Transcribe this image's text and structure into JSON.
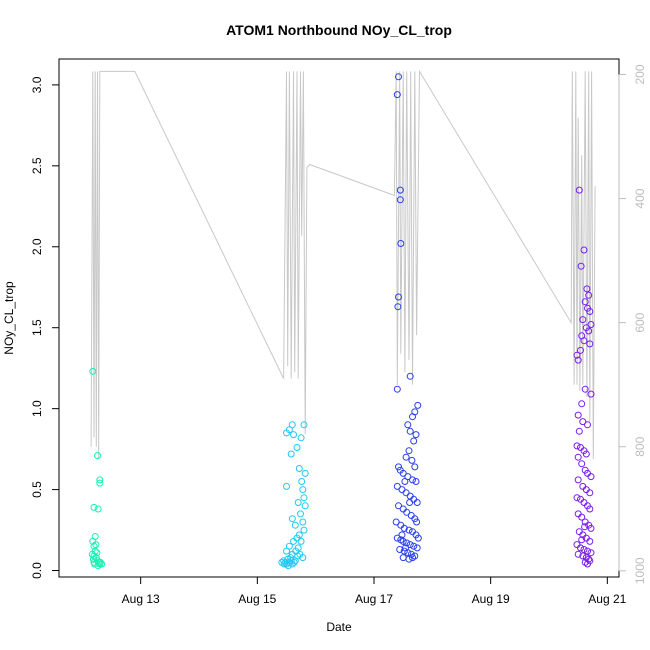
{
  "chart_data": {
    "type": "scatter",
    "title": "ATOM1 Northbound NOy_CL_trop",
    "xlabel": "Date",
    "ylabel": "NOy_CL_trop",
    "x_tick_labels": [
      "Aug 13",
      "Aug 15",
      "Aug 17",
      "Aug 19",
      "Aug 21"
    ],
    "x_tick_days": [
      13,
      15,
      17,
      19,
      21
    ],
    "x_range_days": [
      11.6,
      21.2
    ],
    "ylim": [
      -0.04,
      3.16
    ],
    "y_ticks": [
      0.0,
      0.5,
      1.0,
      1.5,
      2.0,
      2.5,
      3.0
    ],
    "y_tick_labels": [
      "0.0",
      "0.5",
      "1.0",
      "1.5",
      "2.0",
      "2.5",
      "3.0"
    ],
    "right_axis": {
      "label_color": "#bdbdbd",
      "ticks": [
        200,
        400,
        600,
        800,
        1000
      ],
      "tick_labels": [
        "200",
        "400",
        "600",
        "800",
        "1000"
      ],
      "range_reversed": [
        1010,
        175
      ]
    },
    "grid": false,
    "legend": "none",
    "colors": {
      "flight1": "#19f0b4",
      "flight2": "#21c8f5",
      "flight3": "#2a3ff0",
      "flight4": "#7a1ef0",
      "pressure_line": "#c8c8c8"
    },
    "series": [
      {
        "color": "#19f0b4",
        "points": [
          [
            12.18,
            1.23
          ],
          [
            12.2,
            0.39
          ],
          [
            12.27,
            0.38
          ],
          [
            12.3,
            0.56
          ],
          [
            12.3,
            0.54
          ],
          [
            12.26,
            0.71
          ],
          [
            12.18,
            0.18
          ],
          [
            12.22,
            0.21
          ],
          [
            12.2,
            0.15
          ],
          [
            12.22,
            0.12
          ],
          [
            12.25,
            0.11
          ],
          [
            12.2,
            0.09
          ],
          [
            12.19,
            0.07
          ],
          [
            12.2,
            0.05
          ],
          [
            12.21,
            0.04
          ],
          [
            12.24,
            0.08
          ],
          [
            12.26,
            0.06
          ],
          [
            12.28,
            0.05
          ],
          [
            12.3,
            0.04
          ],
          [
            12.31,
            0.05
          ],
          [
            12.33,
            0.04
          ],
          [
            12.23,
            0.16
          ],
          [
            12.17,
            0.1
          ],
          [
            12.27,
            0.03
          ]
        ]
      },
      {
        "color": "#21c8f5",
        "points": [
          [
            15.5,
            0.85
          ],
          [
            15.55,
            0.87
          ],
          [
            15.6,
            0.9
          ],
          [
            15.62,
            0.84
          ],
          [
            15.58,
            0.72
          ],
          [
            15.68,
            0.76
          ],
          [
            15.75,
            0.82
          ],
          [
            15.8,
            0.9
          ],
          [
            15.72,
            0.63
          ],
          [
            15.76,
            0.55
          ],
          [
            15.78,
            0.5
          ],
          [
            15.8,
            0.45
          ],
          [
            15.5,
            0.52
          ],
          [
            15.7,
            0.42
          ],
          [
            15.82,
            0.4
          ],
          [
            15.74,
            0.35
          ],
          [
            15.6,
            0.32
          ],
          [
            15.65,
            0.28
          ],
          [
            15.78,
            0.3
          ],
          [
            15.8,
            0.25
          ],
          [
            15.72,
            0.22
          ],
          [
            15.68,
            0.2
          ],
          [
            15.62,
            0.18
          ],
          [
            15.55,
            0.15
          ],
          [
            15.5,
            0.12
          ],
          [
            15.6,
            0.1
          ],
          [
            15.66,
            0.12
          ],
          [
            15.7,
            0.14
          ],
          [
            15.73,
            0.1
          ],
          [
            15.78,
            0.08
          ],
          [
            15.45,
            0.06
          ],
          [
            15.48,
            0.05
          ],
          [
            15.5,
            0.04
          ],
          [
            15.52,
            0.07
          ],
          [
            15.55,
            0.05
          ],
          [
            15.58,
            0.06
          ],
          [
            15.6,
            0.04
          ],
          [
            15.63,
            0.05
          ],
          [
            15.42,
            0.05
          ],
          [
            15.46,
            0.04
          ],
          [
            15.53,
            0.03
          ],
          [
            15.57,
            0.08
          ],
          [
            15.65,
            0.06
          ],
          [
            15.69,
            0.09
          ],
          [
            15.75,
            0.18
          ],
          [
            15.82,
            0.6
          ]
        ]
      },
      {
        "color": "#2a3ff0",
        "points": [
          [
            17.42,
            3.05
          ],
          [
            17.4,
            2.94
          ],
          [
            17.45,
            2.35
          ],
          [
            17.45,
            2.29
          ],
          [
            17.46,
            2.02
          ],
          [
            17.42,
            1.69
          ],
          [
            17.41,
            1.63
          ],
          [
            17.62,
            1.2
          ],
          [
            17.4,
            1.12
          ],
          [
            17.75,
            1.02
          ],
          [
            17.7,
            0.98
          ],
          [
            17.66,
            0.95
          ],
          [
            17.58,
            0.9
          ],
          [
            17.62,
            0.86
          ],
          [
            17.72,
            0.84
          ],
          [
            17.68,
            0.8
          ],
          [
            17.6,
            0.74
          ],
          [
            17.55,
            0.7
          ],
          [
            17.65,
            0.68
          ],
          [
            17.7,
            0.64
          ],
          [
            17.42,
            0.64
          ],
          [
            17.45,
            0.62
          ],
          [
            17.5,
            0.6
          ],
          [
            17.58,
            0.58
          ],
          [
            17.66,
            0.56
          ],
          [
            17.72,
            0.55
          ],
          [
            17.4,
            0.52
          ],
          [
            17.48,
            0.5
          ],
          [
            17.55,
            0.48
          ],
          [
            17.62,
            0.46
          ],
          [
            17.68,
            0.44
          ],
          [
            17.74,
            0.42
          ],
          [
            17.42,
            0.4
          ],
          [
            17.5,
            0.38
          ],
          [
            17.56,
            0.36
          ],
          [
            17.64,
            0.34
          ],
          [
            17.7,
            0.32
          ],
          [
            17.38,
            0.3
          ],
          [
            17.46,
            0.28
          ],
          [
            17.52,
            0.26
          ],
          [
            17.6,
            0.25
          ],
          [
            17.66,
            0.24
          ],
          [
            17.72,
            0.22
          ],
          [
            17.4,
            0.2
          ],
          [
            17.46,
            0.19
          ],
          [
            17.5,
            0.18
          ],
          [
            17.56,
            0.17
          ],
          [
            17.62,
            0.16
          ],
          [
            17.68,
            0.15
          ],
          [
            17.74,
            0.14
          ],
          [
            17.44,
            0.13
          ],
          [
            17.52,
            0.12
          ],
          [
            17.58,
            0.11
          ],
          [
            17.64,
            0.1
          ],
          [
            17.7,
            0.09
          ],
          [
            17.5,
            0.08
          ],
          [
            17.6,
            0.07
          ],
          [
            17.66,
            0.08
          ],
          [
            17.54,
            0.14
          ],
          [
            17.48,
            0.22
          ],
          [
            17.76,
            0.2
          ],
          [
            17.73,
            0.3
          ],
          [
            17.61,
            0.42
          ],
          [
            17.53,
            0.55
          ]
        ]
      },
      {
        "color": "#7a1ef0",
        "points": [
          [
            20.52,
            2.35
          ],
          [
            20.6,
            1.98
          ],
          [
            20.55,
            1.88
          ],
          [
            20.65,
            1.74
          ],
          [
            20.68,
            1.7
          ],
          [
            20.62,
            1.66
          ],
          [
            20.66,
            1.62
          ],
          [
            20.7,
            1.6
          ],
          [
            20.58,
            1.55
          ],
          [
            20.72,
            1.52
          ],
          [
            20.64,
            1.5
          ],
          [
            20.68,
            1.48
          ],
          [
            20.56,
            1.45
          ],
          [
            20.6,
            1.42
          ],
          [
            20.7,
            1.4
          ],
          [
            20.54,
            1.36
          ],
          [
            20.48,
            1.33
          ],
          [
            20.5,
            1.3
          ],
          [
            20.62,
            1.12
          ],
          [
            20.72,
            1.09
          ],
          [
            20.56,
            1.03
          ],
          [
            20.5,
            0.96
          ],
          [
            20.58,
            0.92
          ],
          [
            20.66,
            0.9
          ],
          [
            20.52,
            0.86
          ],
          [
            20.48,
            0.77
          ],
          [
            20.54,
            0.76
          ],
          [
            20.6,
            0.74
          ],
          [
            20.64,
            0.72
          ],
          [
            20.5,
            0.7
          ],
          [
            20.56,
            0.66
          ],
          [
            20.62,
            0.62
          ],
          [
            20.66,
            0.6
          ],
          [
            20.72,
            0.58
          ],
          [
            20.5,
            0.56
          ],
          [
            20.58,
            0.52
          ],
          [
            20.64,
            0.5
          ],
          [
            20.7,
            0.48
          ],
          [
            20.48,
            0.45
          ],
          [
            20.54,
            0.44
          ],
          [
            20.6,
            0.42
          ],
          [
            20.66,
            0.4
          ],
          [
            20.7,
            0.38
          ],
          [
            20.5,
            0.35
          ],
          [
            20.56,
            0.33
          ],
          [
            20.62,
            0.3
          ],
          [
            20.68,
            0.28
          ],
          [
            20.72,
            0.26
          ],
          [
            20.52,
            0.24
          ],
          [
            20.58,
            0.22
          ],
          [
            20.64,
            0.2
          ],
          [
            20.7,
            0.18
          ],
          [
            20.48,
            0.16
          ],
          [
            20.54,
            0.14
          ],
          [
            20.6,
            0.13
          ],
          [
            20.66,
            0.12
          ],
          [
            20.72,
            0.11
          ],
          [
            20.5,
            0.1
          ],
          [
            20.58,
            0.09
          ],
          [
            20.64,
            0.08
          ],
          [
            20.68,
            0.07
          ],
          [
            20.7,
            0.06
          ],
          [
            20.62,
            0.05
          ],
          [
            20.66,
            0.04
          ],
          [
            20.56,
            0.19
          ],
          [
            20.61,
            0.27
          ]
        ]
      }
    ],
    "pressure_trace": {
      "color": "#c8c8c8",
      "points": [
        [
          12.15,
          800
        ],
        [
          12.18,
          195
        ],
        [
          12.2,
          785
        ],
        [
          12.22,
          195
        ],
        [
          12.24,
          800
        ],
        [
          12.26,
          195
        ],
        [
          12.28,
          820
        ],
        [
          12.3,
          195
        ],
        [
          12.32,
          195
        ],
        [
          12.9,
          195
        ],
        [
          15.45,
          690
        ],
        [
          15.5,
          195
        ],
        [
          15.52,
          670
        ],
        [
          15.55,
          195
        ],
        [
          15.58,
          690
        ],
        [
          15.62,
          195
        ],
        [
          15.64,
          680
        ],
        [
          15.68,
          195
        ],
        [
          15.7,
          690
        ],
        [
          15.74,
          195
        ],
        [
          15.76,
          460
        ],
        [
          15.79,
          195
        ],
        [
          15.82,
          780
        ],
        [
          15.85,
          350
        ],
        [
          15.9,
          345
        ],
        [
          17.35,
          395
        ],
        [
          17.38,
          195
        ],
        [
          17.4,
          700
        ],
        [
          17.44,
          195
        ],
        [
          17.46,
          650
        ],
        [
          17.5,
          195
        ],
        [
          17.53,
          680
        ],
        [
          17.56,
          195
        ],
        [
          17.6,
          660
        ],
        [
          17.63,
          195
        ],
        [
          17.66,
          700
        ],
        [
          17.7,
          195
        ],
        [
          17.73,
          620
        ],
        [
          17.78,
          195
        ],
        [
          20.38,
          600
        ],
        [
          20.4,
          195
        ],
        [
          20.43,
          700
        ],
        [
          20.46,
          195
        ],
        [
          20.48,
          700
        ],
        [
          20.5,
          270
        ],
        [
          20.53,
          710
        ],
        [
          20.56,
          330
        ],
        [
          20.58,
          700
        ],
        [
          20.62,
          195
        ],
        [
          20.65,
          720
        ],
        [
          20.68,
          195
        ],
        [
          20.7,
          760
        ],
        [
          20.73,
          195
        ],
        [
          20.76,
          820
        ],
        [
          20.79,
          380
        ]
      ]
    }
  }
}
